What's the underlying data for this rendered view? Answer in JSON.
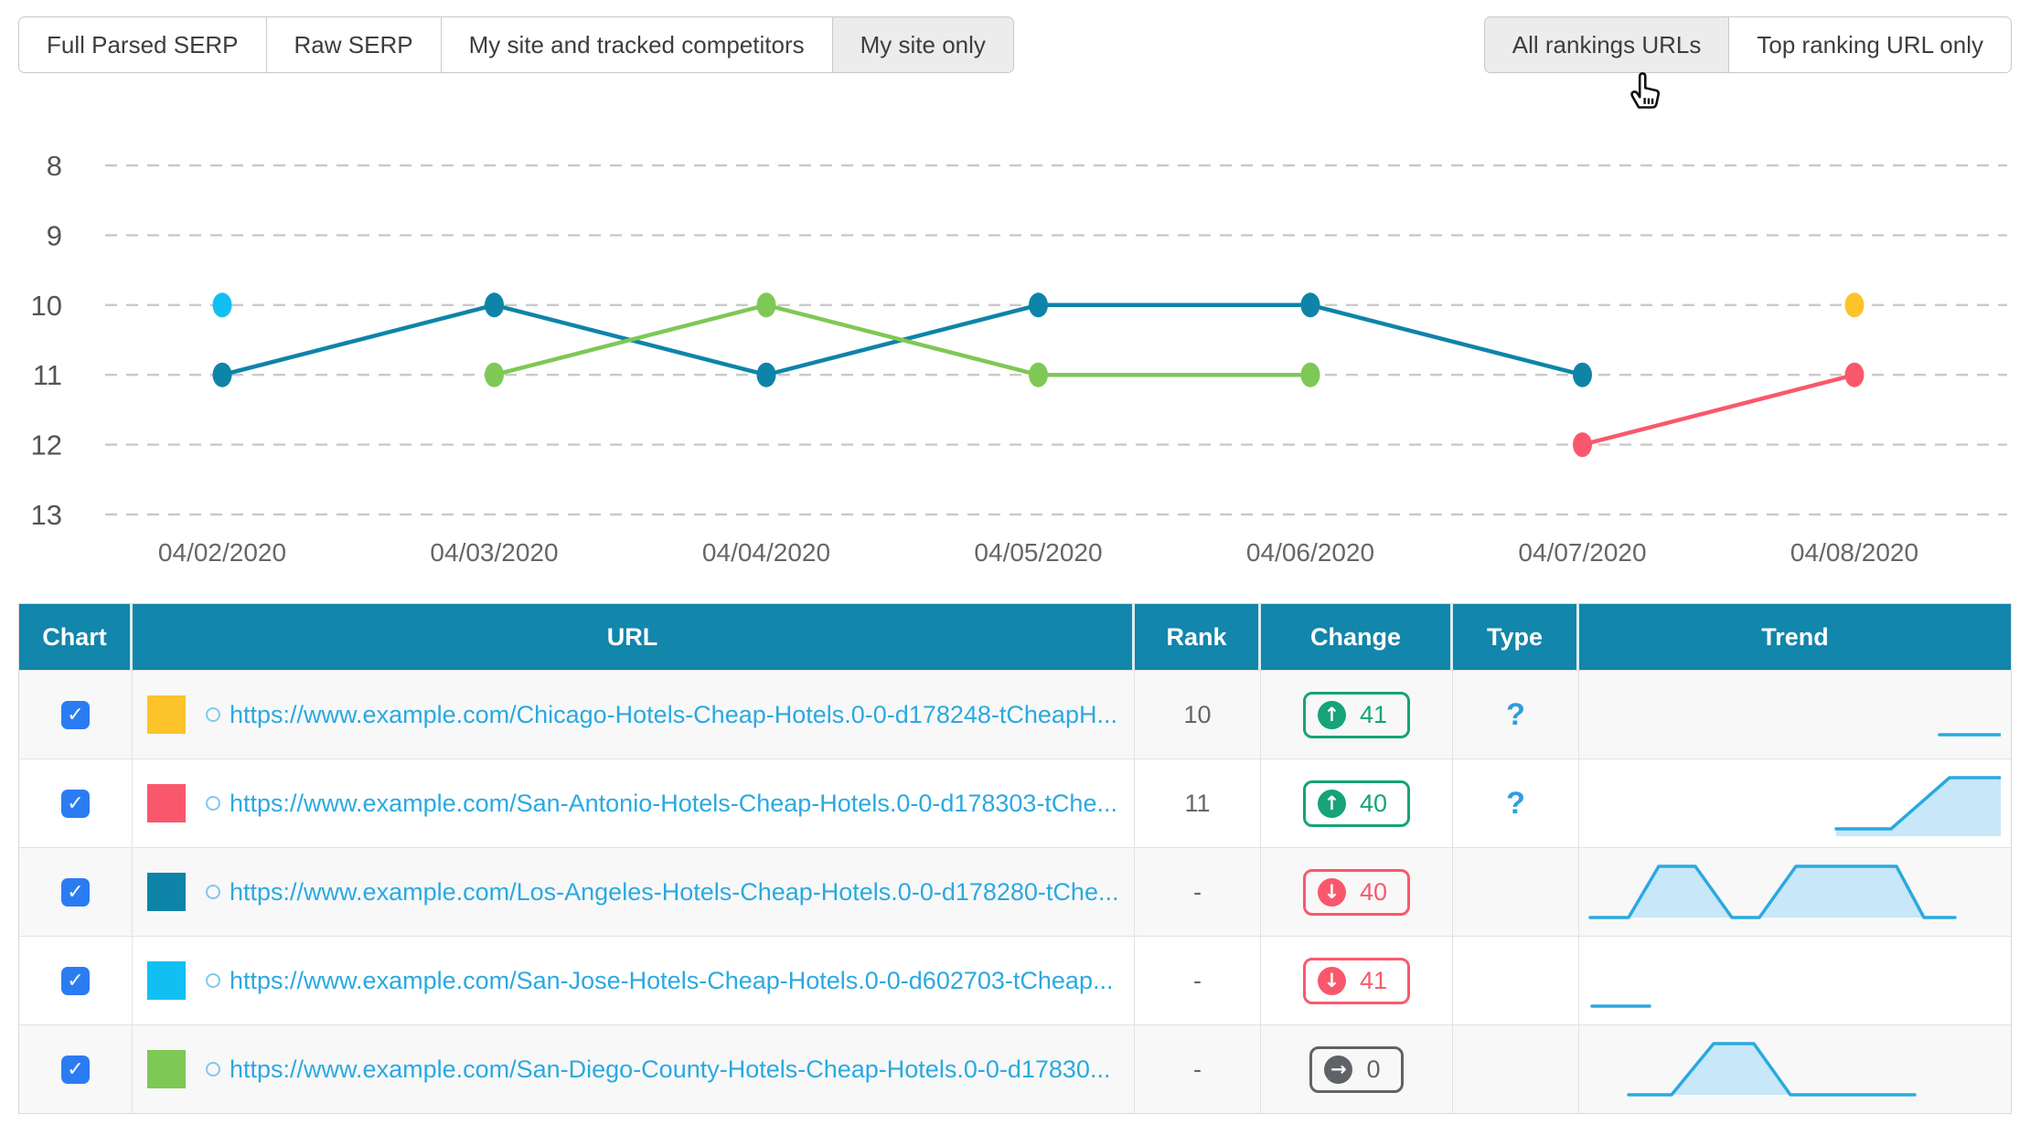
{
  "toolbar": {
    "left_buttons": [
      {
        "label": "Full Parsed SERP",
        "active": false
      },
      {
        "label": "Raw SERP",
        "active": false
      },
      {
        "label": "My site and tracked competitors",
        "active": false
      },
      {
        "label": "My site only",
        "active": true
      }
    ],
    "right_buttons": [
      {
        "label": "All rankings URLs",
        "active": true
      },
      {
        "label": "Top ranking URL only",
        "active": false
      }
    ]
  },
  "chart_data": {
    "type": "line",
    "y_axis_inverted": true,
    "grid": "dashed-horizontal",
    "y_ticks": [
      8,
      9,
      10,
      11,
      12,
      13
    ],
    "categories": [
      "04/02/2020",
      "04/03/2020",
      "04/04/2020",
      "04/05/2020",
      "04/06/2020",
      "04/07/2020",
      "04/08/2020"
    ],
    "series": [
      {
        "name": "los-angeles",
        "color": "#0e84a8",
        "data": {
          "04/02/2020": 11,
          "04/03/2020": 10,
          "04/04/2020": 11,
          "04/05/2020": 10,
          "04/06/2020": 10,
          "04/07/2020": 11
        }
      },
      {
        "name": "san-diego-county",
        "color": "#7ec855",
        "data": {
          "04/03/2020": 11,
          "04/04/2020": 10,
          "04/05/2020": 11,
          "04/06/2020": 11
        }
      },
      {
        "name": "san-antonio",
        "color": "#f9586c",
        "data": {
          "04/07/2020": 12,
          "04/08/2020": 11
        }
      },
      {
        "name": "san-jose",
        "color": "#12bff2",
        "data": {
          "04/02/2020": 10
        }
      },
      {
        "name": "chicago",
        "color": "#fdc32b",
        "data": {
          "04/08/2020": 10
        }
      }
    ]
  },
  "icons": {
    "checkmark": "✓",
    "arrows": {
      "up": "↑",
      "down": "↓",
      "none": "→"
    }
  },
  "sparkline_style": {
    "stroke": "#2aa9e0",
    "fill": "#c8e7f8"
  },
  "table": {
    "columns": [
      "Chart",
      "URL",
      "Rank",
      "Change",
      "Type",
      "Trend"
    ],
    "rows": [
      {
        "checked": true,
        "color": "#fdc32b",
        "url": "https://www.example.com/Chicago-Hotels-Cheap-Hotels.0-0-d178248-tCheapH...",
        "rank": "10",
        "change": {
          "value": "41",
          "dir": "up"
        },
        "type": "?",
        "trend": {
          "points": [
            [
              385,
              62
            ],
            [
              452,
              62
            ]
          ],
          "fill": false
        }
      },
      {
        "checked": true,
        "color": "#f9586c",
        "url": "https://www.example.com/San-Antonio-Hotels-Cheap-Hotels.0-0-d178303-tChe...",
        "rank": "11",
        "change": {
          "value": "40",
          "dir": "up"
        },
        "type": "?",
        "trend": {
          "points": [
            [
              272,
              68
            ],
            [
              332,
              68
            ],
            [
              396,
              12
            ],
            [
              452,
              12
            ]
          ],
          "fill": true,
          "baseline": 76
        }
      },
      {
        "checked": true,
        "color": "#0e84a8",
        "url": "https://www.example.com/Los-Angeles-Hotels-Cheap-Hotels.0-0-d178280-tChe...",
        "rank": "-",
        "change": {
          "value": "40",
          "dir": "down"
        },
        "type": "",
        "trend": {
          "points": [
            [
              3,
              68
            ],
            [
              45,
              68
            ],
            [
              78,
              12
            ],
            [
              118,
              12
            ],
            [
              158,
              68
            ],
            [
              188,
              68
            ],
            [
              228,
              12
            ],
            [
              338,
              12
            ],
            [
              368,
              68
            ],
            [
              402,
              68
            ]
          ],
          "fill": true,
          "baseline": 68
        }
      },
      {
        "checked": true,
        "color": "#12bff2",
        "url": "https://www.example.com/San-Jose-Hotels-Cheap-Hotels.0-0-d602703-tCheap...",
        "rank": "-",
        "change": {
          "value": "41",
          "dir": "down"
        },
        "type": "",
        "trend": {
          "points": [
            [
              5,
              68
            ],
            [
              68,
              68
            ]
          ],
          "fill": false
        }
      },
      {
        "checked": true,
        "color": "#7ec855",
        "url": "https://www.example.com/San-Diego-County-Hotels-Cheap-Hotels.0-0-d17830...",
        "rank": "-",
        "change": {
          "value": "0",
          "dir": "none"
        },
        "type": "",
        "trend": {
          "points": [
            [
              45,
              68
            ],
            [
              92,
              68
            ],
            [
              138,
              12
            ],
            [
              182,
              12
            ],
            [
              222,
              68
            ],
            [
              358,
              68
            ]
          ],
          "fill": true,
          "baseline": 68
        }
      }
    ]
  }
}
